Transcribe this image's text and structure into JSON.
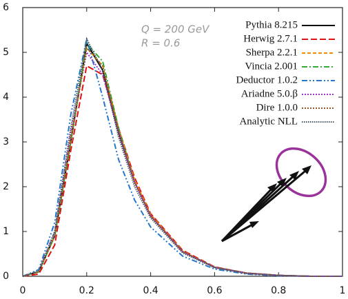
{
  "chart_data": {
    "type": "line",
    "annotations": [
      "Q = 200 GeV",
      "R = 0.6"
    ],
    "x": [
      0,
      0.05,
      0.1,
      0.15,
      0.2,
      0.25,
      0.3,
      0.35,
      0.4,
      0.5,
      0.6,
      0.7,
      0.8,
      0.9,
      1
    ],
    "series": [
      {
        "name": "Pythia 8.215",
        "color": "#000000",
        "values": [
          0,
          0.1,
          0.9,
          3.0,
          5.2,
          4.6,
          3.2,
          2.1,
          1.35,
          0.55,
          0.2,
          0.07,
          0.02,
          0,
          0
        ]
      },
      {
        "name": "Herwig 2.7.1",
        "color": "#dd1111",
        "values": [
          0,
          0.05,
          0.7,
          2.8,
          4.7,
          4.5,
          3.3,
          2.2,
          1.4,
          0.58,
          0.21,
          0.07,
          0.02,
          0,
          0
        ]
      },
      {
        "name": "Sherpa 2.2.1",
        "color": "#f08c00",
        "values": [
          0,
          0.1,
          0.9,
          3.1,
          5.1,
          4.7,
          3.3,
          2.15,
          1.38,
          0.56,
          0.2,
          0.07,
          0.02,
          0,
          0
        ]
      },
      {
        "name": "Vincia 2.001",
        "color": "#33aa33",
        "values": [
          0,
          0.1,
          0.9,
          3.0,
          5.2,
          4.8,
          3.3,
          2.1,
          1.35,
          0.55,
          0.2,
          0.07,
          0.02,
          0,
          0
        ]
      },
      {
        "name": "Deductor 1.0.2",
        "color": "#2277cc",
        "values": [
          0,
          0.15,
          1.2,
          3.6,
          5.3,
          4.0,
          2.6,
          1.7,
          1.1,
          0.45,
          0.16,
          0.05,
          0.01,
          0,
          0
        ]
      },
      {
        "name": "Ariadne 5.0.β",
        "color": "#9933cc",
        "values": [
          0,
          0.1,
          1.0,
          3.2,
          5.0,
          4.5,
          3.2,
          2.1,
          1.35,
          0.55,
          0.2,
          0.07,
          0.02,
          0,
          0
        ]
      },
      {
        "name": "Dire 1.0.0",
        "color": "#995522",
        "values": [
          0,
          0.1,
          0.9,
          3.0,
          5.1,
          4.7,
          3.25,
          2.1,
          1.35,
          0.55,
          0.2,
          0.07,
          0.02,
          0,
          0
        ]
      },
      {
        "name": "Analytic NLL",
        "color": "#445566",
        "values": [
          0,
          0.12,
          1.0,
          3.3,
          5.3,
          4.6,
          3.1,
          2.0,
          1.3,
          0.52,
          0.19,
          0.06,
          0.02,
          0,
          0
        ]
      }
    ],
    "xlim": [
      0,
      1
    ],
    "xticks": [
      0,
      0.2,
      0.4,
      0.6,
      0.8,
      1
    ],
    "ylim": [
      0,
      6
    ],
    "yticks": [
      0,
      1,
      2,
      3,
      4,
      5,
      6
    ],
    "legend": "upper right"
  }
}
